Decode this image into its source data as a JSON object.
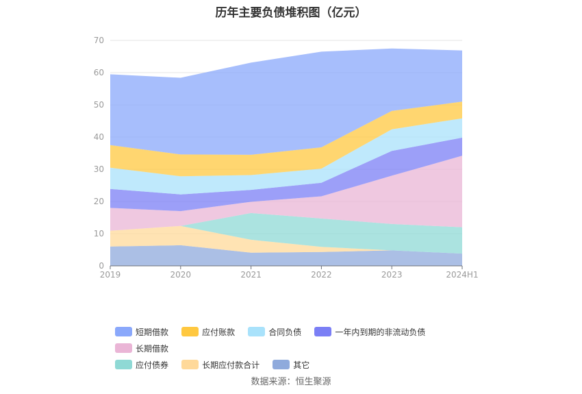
{
  "title": "历年主要负债堆积图（亿元）",
  "source": "数据来源：恒生聚源",
  "chart_data": {
    "type": "area",
    "stacked": true,
    "categories": [
      "2019",
      "2020",
      "2021",
      "2022",
      "2023",
      "2024H1"
    ],
    "ylim": [
      0,
      70
    ],
    "yticks": [
      0,
      10,
      20,
      30,
      40,
      50,
      60,
      70
    ],
    "grid": true,
    "legend_position": "bottom",
    "series": [
      {
        "name": "其它",
        "color": "#8faadc",
        "values": [
          6.0,
          6.4,
          4.1,
          4.3,
          4.8,
          3.8
        ]
      },
      {
        "name": "长期应付款合计",
        "color": "#ffd99a",
        "values": [
          4.9,
          6.0,
          4.0,
          1.6,
          0.0,
          0.0
        ]
      },
      {
        "name": "应付债券",
        "color": "#8fd9d5",
        "values": [
          0.0,
          0.0,
          8.3,
          8.8,
          8.2,
          8.2
        ]
      },
      {
        "name": "长期借款",
        "color": "#eab5d6",
        "values": [
          7.1,
          4.6,
          3.5,
          6.9,
          15.0,
          22.2
        ]
      },
      {
        "name": "一年内到期的非流动负债",
        "color": "#7b7ff5",
        "values": [
          5.9,
          5.2,
          3.7,
          4.2,
          7.7,
          5.6
        ]
      },
      {
        "name": "合同负债",
        "color": "#a9e2fb",
        "values": [
          6.6,
          5.6,
          4.6,
          4.4,
          6.7,
          6.0
        ]
      },
      {
        "name": "应付账款",
        "color": "#ffc840",
        "values": [
          7.0,
          6.8,
          6.3,
          6.6,
          5.7,
          5.2
        ]
      },
      {
        "name": "短期借款",
        "color": "#8aa8fb",
        "values": [
          22.0,
          23.8,
          28.6,
          29.7,
          19.4,
          15.9
        ]
      }
    ]
  },
  "legend": {
    "items": [
      {
        "label": "短期借款",
        "color": "#8aa8fb"
      },
      {
        "label": "应付账款",
        "color": "#ffc840"
      },
      {
        "label": "合同负债",
        "color": "#a9e2fb"
      },
      {
        "label": "一年内到期的非流动负债",
        "color": "#7b7ff5"
      },
      {
        "label": "长期借款",
        "color": "#eab5d6"
      },
      {
        "label": "应付债券",
        "color": "#8fd9d5"
      },
      {
        "label": "长期应付款合计",
        "color": "#ffd99a"
      },
      {
        "label": "其它",
        "color": "#8faadc"
      }
    ]
  }
}
